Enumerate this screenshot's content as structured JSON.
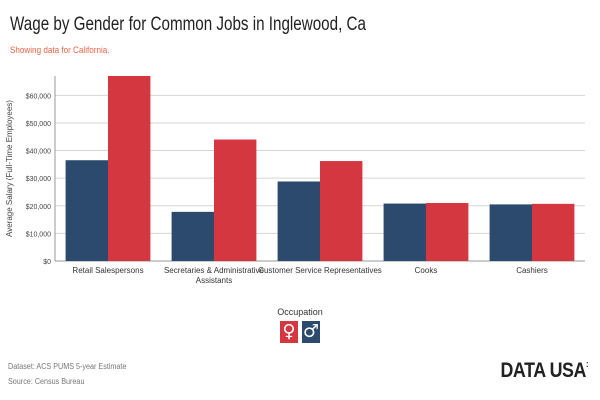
{
  "header": {
    "title": "Wage by Gender for Common Jobs in Inglewood, Ca",
    "subtitle": "Showing data for California."
  },
  "legend": {
    "title": "Occupation",
    "items": [
      {
        "symbol": "♀",
        "color": "#d4373f"
      },
      {
        "symbol": "♂",
        "color": "#2c4a6e"
      }
    ]
  },
  "footer": {
    "dataset": "Dataset: ACS PUMS 5-year Estimate",
    "source": "Source: Census Bureau",
    "brand": "DATA USA",
    "brand_suffix": ":"
  },
  "chart_data": {
    "type": "bar",
    "ylabel": "Average Salary (Full-Time Employees)",
    "xlabel": "",
    "ylim": [
      0,
      67000
    ],
    "yticks": [
      0,
      10000,
      20000,
      30000,
      40000,
      50000,
      60000
    ],
    "ytick_labels": [
      "$0",
      "$10,000",
      "$20,000",
      "$30,000",
      "$40,000",
      "$50,000",
      "$60,000"
    ],
    "categories": [
      [
        "Retail Salespersons"
      ],
      [
        "Secretaries & Administrative",
        "Assistants"
      ],
      [
        "Customer Service Representatives"
      ],
      [
        "Cooks"
      ],
      [
        "Cashiers"
      ]
    ],
    "series": [
      {
        "color": "#2c4a6e",
        "values": [
          36500,
          17800,
          28800,
          20800,
          20500
        ]
      },
      {
        "color": "#d4373f",
        "values": [
          67000,
          44000,
          36200,
          21000,
          20700
        ]
      }
    ],
    "grid": true
  }
}
